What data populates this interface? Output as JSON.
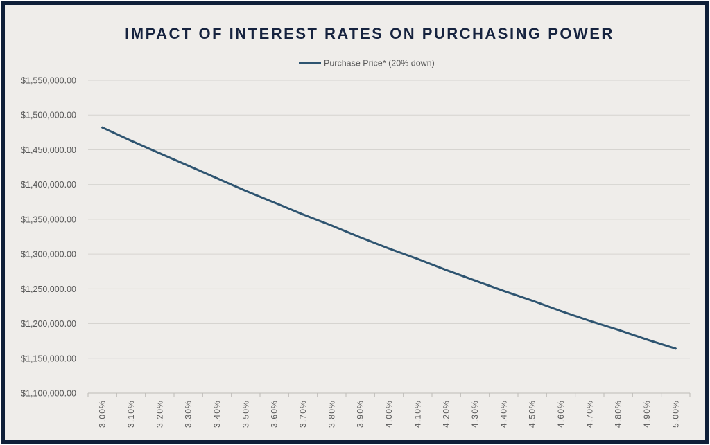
{
  "chart_data": {
    "type": "line",
    "title": "IMPACT OF INTEREST RATES ON PURCHASING POWER",
    "legend_position": "top-center",
    "grid": true,
    "x": [
      "3.00%",
      "3.10%",
      "3.20%",
      "3.30%",
      "3.40%",
      "3.50%",
      "3.60%",
      "3.70%",
      "3.80%",
      "3.90%",
      "4.00%",
      "4.10%",
      "4.20%",
      "4.30%",
      "4.40%",
      "4.50%",
      "4.60%",
      "4.70%",
      "4.80%",
      "4.90%",
      "5.00%"
    ],
    "yticks": [
      "$1,550,000.00",
      "$1,500,000.00",
      "$1,450,000.00",
      "$1,400,000.00",
      "$1,350,000.00",
      "$1,300,000.00",
      "$1,250,000.00",
      "$1,200,000.00",
      "$1,150,000.00",
      "$1,100,000.00"
    ],
    "ylim": [
      1100000,
      1550000
    ],
    "series": [
      {
        "name": "Purchase Price* (20% down)",
        "color": "#2e5470",
        "values": [
          1482000,
          1463000,
          1445000,
          1427000,
          1409000,
          1391000,
          1374000,
          1357000,
          1341000,
          1324000,
          1308000,
          1293000,
          1277000,
          1262000,
          1247000,
          1233000,
          1218000,
          1204000,
          1191000,
          1177000,
          1164000
        ]
      }
    ]
  }
}
